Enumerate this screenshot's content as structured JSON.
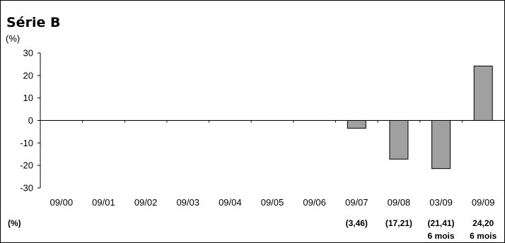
{
  "chart_data": {
    "type": "bar",
    "title": "Série B",
    "ylabel": "(%)",
    "ylim": [
      -30,
      30
    ],
    "yticks": [
      30,
      20,
      10,
      0,
      -10,
      -20,
      -30
    ],
    "categories": [
      "09/00",
      "09/01",
      "09/02",
      "09/03",
      "09/04",
      "09/05",
      "09/06",
      "09/07",
      "09/08",
      "03/09",
      "09/09"
    ],
    "values": [
      null,
      null,
      null,
      null,
      null,
      null,
      null,
      -3.46,
      -17.21,
      -21.41,
      24.2
    ],
    "bar_color": "#a0a0a0",
    "grid": false,
    "table": {
      "row_label": "(%)",
      "labels": [
        "",
        "",
        "",
        "",
        "",
        "",
        "",
        "(3,46)",
        "(17,21)",
        "(21,41)",
        "24,20"
      ],
      "sublabels": [
        "",
        "",
        "",
        "",
        "",
        "",
        "",
        "",
        "",
        "6 mois",
        "6 mois"
      ]
    }
  }
}
